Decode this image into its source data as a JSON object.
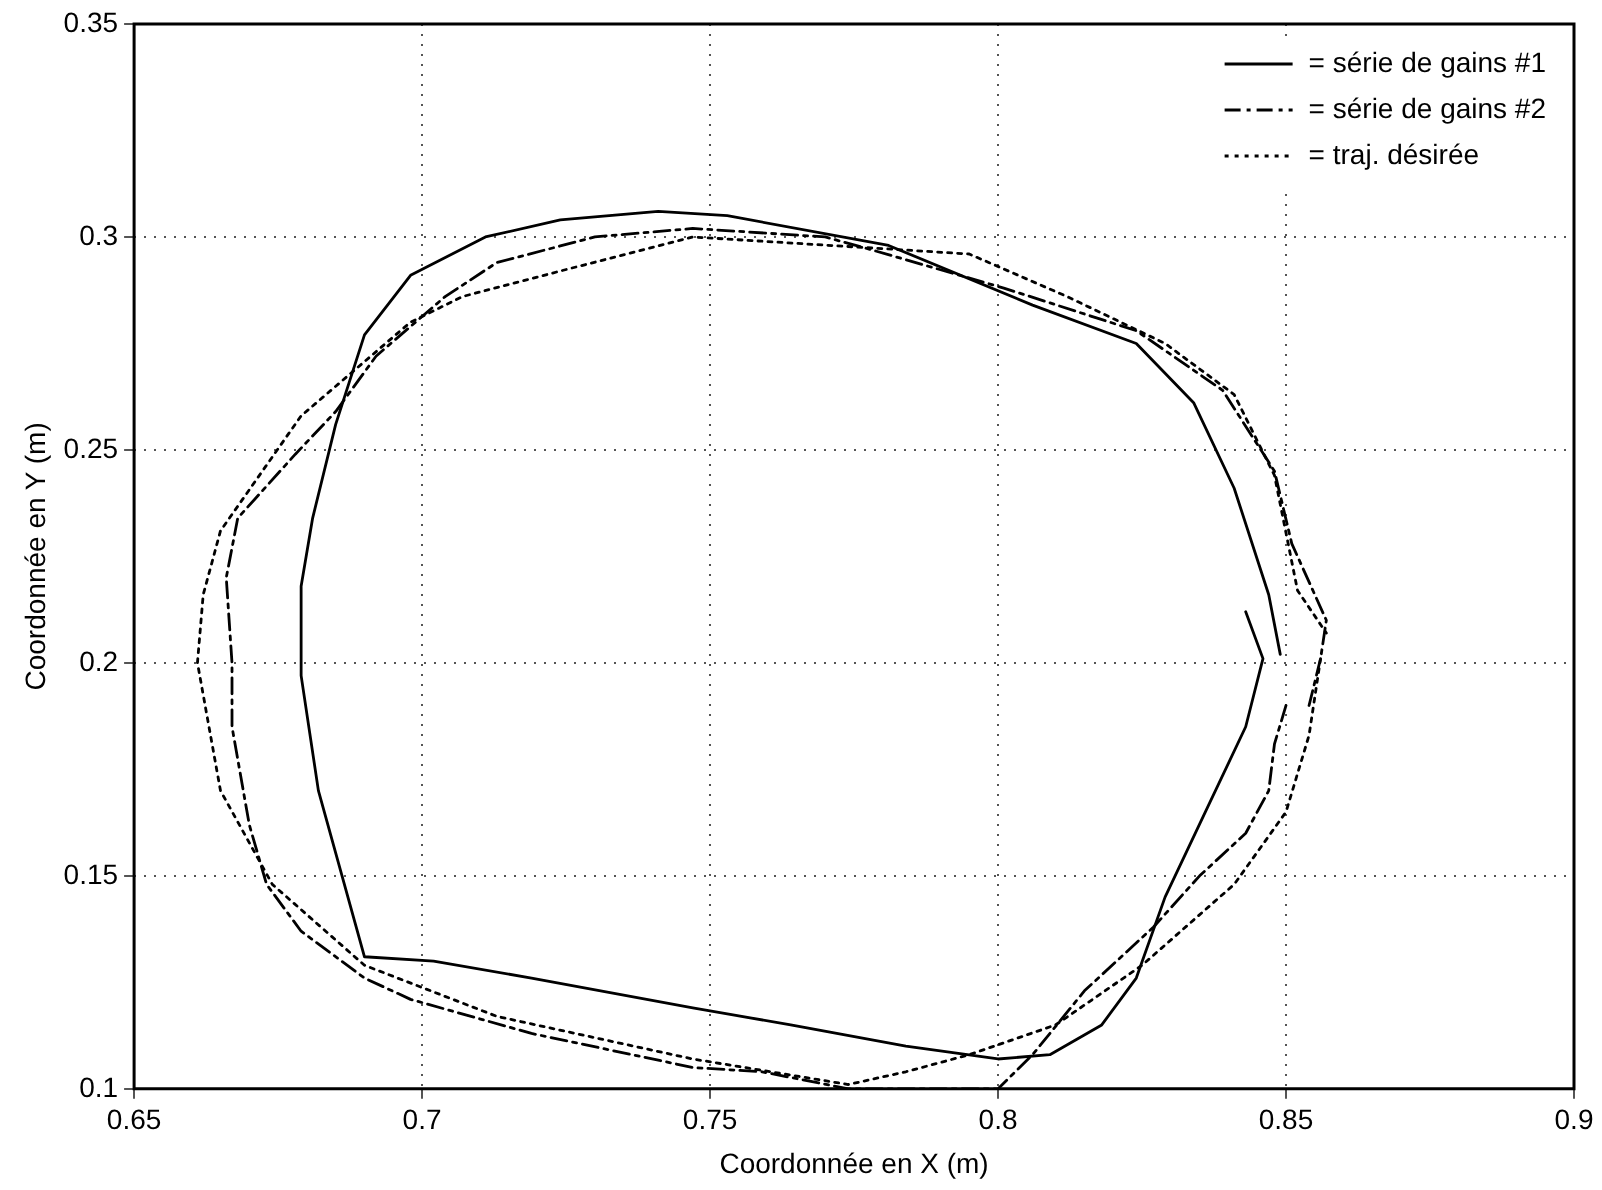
{
  "chart_data": {
    "type": "line",
    "xlabel": "Coordonnée en X (m)",
    "ylabel": "Coordonnée en Y (m)",
    "xlim": [
      0.65,
      0.9
    ],
    "ylim": [
      0.1,
      0.35
    ],
    "xticks": [
      0.65,
      0.7,
      0.75,
      0.8,
      0.85,
      0.9
    ],
    "yticks": [
      0.1,
      0.15,
      0.2,
      0.25,
      0.3,
      0.35
    ],
    "grid": true,
    "legend": "top right",
    "marker": "none",
    "series": [
      {
        "name": "= série de gains #1",
        "color": "#000000",
        "line_style": "solid",
        "x": [
          0.843,
          0.846,
          0.843,
          0.836,
          0.829,
          0.824,
          0.818,
          0.809,
          0.8,
          0.784,
          0.764,
          0.747,
          0.719,
          0.702,
          0.69,
          0.682,
          0.679,
          0.679,
          0.681,
          0.685,
          0.69,
          0.698,
          0.711,
          0.724,
          0.741,
          0.753,
          0.781,
          0.806,
          0.824,
          0.834,
          0.841,
          0.847,
          0.849
        ],
        "values": [
          0.212,
          0.201,
          0.185,
          0.165,
          0.145,
          0.126,
          0.115,
          0.108,
          0.107,
          0.11,
          0.115,
          0.119,
          0.126,
          0.13,
          0.131,
          0.17,
          0.197,
          0.218,
          0.234,
          0.256,
          0.277,
          0.291,
          0.3,
          0.304,
          0.306,
          0.305,
          0.298,
          0.284,
          0.275,
          0.261,
          0.241,
          0.216,
          0.202
        ]
      },
      {
        "name": "= série de gains #2",
        "color": "#000000",
        "line_style": "dashed",
        "x": [
          0.85,
          0.848,
          0.847,
          0.843,
          0.835,
          0.827,
          0.815,
          0.806,
          0.8,
          0.774,
          0.759,
          0.747,
          0.719,
          0.698,
          0.69,
          0.679,
          0.673,
          0.67,
          0.667,
          0.667,
          0.666,
          0.668,
          0.678,
          0.685,
          0.692,
          0.704,
          0.713,
          0.73,
          0.747,
          0.77,
          0.778,
          0.801,
          0.824,
          0.839,
          0.848,
          0.851,
          0.857,
          0.856,
          0.854
        ],
        "values": [
          0.19,
          0.181,
          0.17,
          0.16,
          0.15,
          0.138,
          0.123,
          0.108,
          0.1,
          0.1,
          0.104,
          0.105,
          0.113,
          0.121,
          0.126,
          0.137,
          0.148,
          0.162,
          0.185,
          0.2,
          0.22,
          0.234,
          0.249,
          0.259,
          0.272,
          0.286,
          0.294,
          0.3,
          0.302,
          0.3,
          0.297,
          0.288,
          0.278,
          0.264,
          0.245,
          0.228,
          0.21,
          0.201,
          0.19
        ]
      },
      {
        "name": "= traj. désirée",
        "color": "#000000",
        "line_style": "dotted",
        "x": [
          0.856,
          0.854,
          0.85,
          0.841,
          0.825,
          0.81,
          0.795,
          0.784,
          0.774,
          0.747,
          0.713,
          0.69,
          0.674,
          0.665,
          0.661,
          0.662,
          0.665,
          0.679,
          0.698,
          0.707,
          0.724,
          0.747,
          0.795,
          0.812,
          0.829,
          0.841,
          0.848,
          0.852,
          0.857
        ],
        "values": [
          0.201,
          0.183,
          0.165,
          0.148,
          0.129,
          0.115,
          0.108,
          0.104,
          0.101,
          0.107,
          0.117,
          0.129,
          0.148,
          0.17,
          0.2,
          0.216,
          0.231,
          0.258,
          0.28,
          0.286,
          0.292,
          0.3,
          0.296,
          0.286,
          0.275,
          0.263,
          0.244,
          0.217,
          0.207
        ]
      }
    ]
  }
}
